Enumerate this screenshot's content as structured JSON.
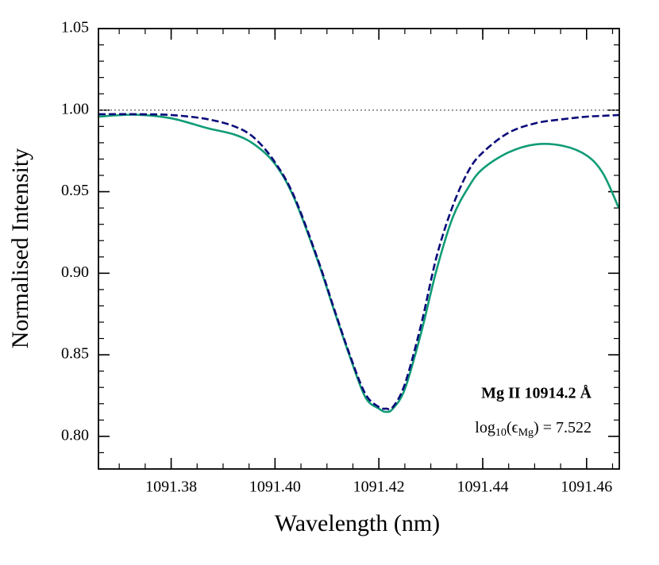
{
  "chart_data": {
    "type": "line",
    "xlabel": "Wavelength (nm)",
    "ylabel": "Normalised Intensity",
    "x": [
      1091.366,
      1091.3731,
      1091.38,
      1091.3869,
      1091.3922,
      1091.396,
      1091.4,
      1091.4037,
      1091.4083,
      1091.4113,
      1091.4144,
      1091.4174,
      1091.42,
      1091.4214,
      1091.4227,
      1091.425,
      1091.4281,
      1091.4311,
      1091.4342,
      1091.4373,
      1091.44,
      1091.4449,
      1091.4502,
      1091.4556,
      1091.4601,
      1091.4632,
      1091.4662
    ],
    "series": [
      {
        "color": "#109c76",
        "dash": "solid",
        "values": [
          0.996,
          0.9972,
          0.995,
          0.989,
          0.985,
          0.979,
          0.967,
          0.946,
          0.907,
          0.878,
          0.849,
          0.824,
          0.817,
          0.815,
          0.817,
          0.829,
          0.863,
          0.902,
          0.934,
          0.953,
          0.964,
          0.974,
          0.979,
          0.978,
          0.972,
          0.961,
          0.94
        ]
      },
      {
        "color": "#0a0a7a",
        "dash": "dashed",
        "values": [
          0.9975,
          0.9975,
          0.997,
          0.9945,
          0.99,
          0.983,
          0.968,
          0.947,
          0.908,
          0.879,
          0.85,
          0.826,
          0.818,
          0.817,
          0.818,
          0.832,
          0.868,
          0.91,
          0.941,
          0.963,
          0.974,
          0.986,
          0.992,
          0.9945,
          0.996,
          0.9965,
          0.997
        ]
      }
    ],
    "reference_line": 1.0,
    "xlim": [
      1091.366,
      1091.4663
    ],
    "ylim": [
      0.78,
      1.05
    ],
    "xticks": [
      1091.38,
      {
        "value": 1091.4,
        "label": "1091.40"
      },
      1091.42,
      1091.44,
      1091.46
    ],
    "yticks": [
      {
        "value": 0.8,
        "label": "0.80"
      },
      {
        "value": 0.85,
        "label": "0.85"
      },
      {
        "value": 0.9,
        "label": "0.90"
      },
      {
        "value": 0.95,
        "label": "0.95"
      },
      {
        "value": 1.0,
        "label": "1.00"
      },
      {
        "value": 1.05,
        "label": "1.05"
      }
    ],
    "xminor": 0.005,
    "yminor": 0.01,
    "annotations": [
      "Mg II  10914.2 Å",
      [
        "log",
        "10",
        "(ϵ",
        "Mg",
        ") = 7.522"
      ]
    ]
  }
}
